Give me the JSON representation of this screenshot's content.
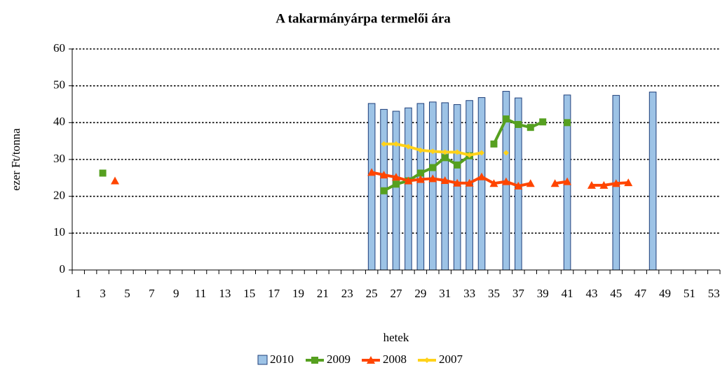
{
  "chart_data": {
    "type": "bar-line",
    "title": "A takarmányárpa termelői ára",
    "ylabel": "ezer Ft/tonna",
    "xlabel": "hetek",
    "categories": [
      1,
      null,
      3,
      null,
      5,
      null,
      7,
      null,
      9,
      null,
      11,
      null,
      13,
      null,
      15,
      null,
      17,
      null,
      19,
      null,
      21,
      null,
      23,
      null,
      25,
      null,
      27,
      null,
      29,
      null,
      31,
      null,
      33,
      null,
      35,
      null,
      37,
      null,
      39,
      null,
      41,
      null,
      43,
      null,
      45,
      null,
      47,
      null,
      49,
      null,
      51,
      null,
      53
    ],
    "ylim": [
      0,
      60
    ],
    "yticks": [
      0,
      10,
      20,
      30,
      40,
      50,
      60
    ],
    "grid": true,
    "legend": "bottom",
    "series": [
      {
        "name": "2010",
        "type": "bar",
        "color": "#9dc3e6",
        "values": [
          null,
          null,
          null,
          null,
          null,
          null,
          null,
          null,
          null,
          null,
          null,
          null,
          null,
          null,
          null,
          null,
          null,
          null,
          null,
          null,
          null,
          null,
          null,
          null,
          45.2,
          43.6,
          43.1,
          44,
          45.2,
          45.6,
          45.4,
          44.9,
          46,
          46.8,
          null,
          48.5,
          46.7,
          null,
          null,
          null,
          47.5,
          null,
          null,
          null,
          47.4,
          null,
          null,
          48.3,
          null,
          null,
          null,
          null,
          null
        ]
      },
      {
        "name": "2009",
        "type": "line",
        "marker": "square",
        "color": "#56a020",
        "values": [
          null,
          null,
          26.3,
          null,
          null,
          null,
          null,
          null,
          null,
          null,
          null,
          null,
          null,
          null,
          null,
          null,
          null,
          null,
          null,
          null,
          null,
          null,
          null,
          null,
          null,
          21.5,
          23.3,
          24.2,
          26.3,
          27.8,
          30.5,
          28.5,
          31,
          null,
          34.2,
          41,
          39.5,
          38.7,
          40.2,
          null,
          40,
          null,
          null,
          null,
          null,
          null,
          null,
          null,
          null,
          null,
          null,
          null,
          null
        ]
      },
      {
        "name": "2008",
        "type": "line",
        "marker": "triangle",
        "color": "#ff4500",
        "values": [
          null,
          null,
          null,
          24.2,
          null,
          null,
          null,
          null,
          null,
          null,
          null,
          null,
          null,
          null,
          null,
          null,
          null,
          null,
          null,
          null,
          null,
          null,
          null,
          null,
          26.5,
          25.8,
          25.2,
          24.2,
          24.6,
          24.8,
          24.3,
          23.6,
          23.6,
          25.3,
          23.5,
          24,
          22.8,
          23.5,
          null,
          23.5,
          24,
          null,
          23,
          23,
          23.5,
          23.7,
          null,
          null,
          null,
          null,
          null,
          null,
          null
        ]
      },
      {
        "name": "2007",
        "type": "line",
        "marker": "diamond",
        "color": "#ffd21a",
        "values": [
          null,
          null,
          null,
          null,
          null,
          null,
          null,
          null,
          null,
          null,
          null,
          null,
          null,
          null,
          null,
          null,
          null,
          null,
          null,
          null,
          null,
          null,
          null,
          null,
          null,
          34.2,
          34.2,
          33.5,
          32.5,
          32.2,
          32,
          32,
          31.2,
          31.8,
          null,
          31.8,
          null,
          null,
          null,
          null,
          null,
          null,
          null,
          null,
          null,
          null,
          null,
          null,
          null,
          null,
          null,
          null,
          null
        ]
      }
    ]
  }
}
